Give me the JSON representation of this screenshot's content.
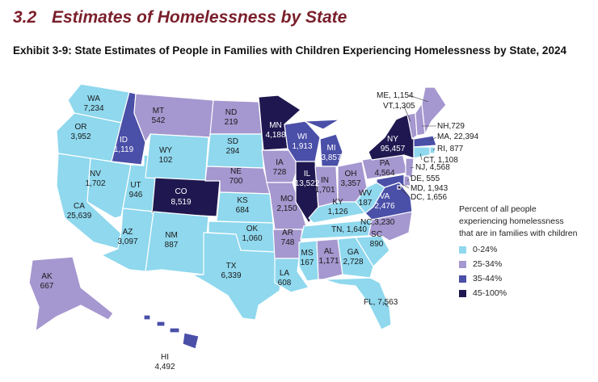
{
  "section": {
    "number": "3.2",
    "title": "Estimates of Homelessness by State"
  },
  "exhibit": {
    "title": "Exhibit 3-9: State Estimates of People in Families with Children Experiencing Homelessness by State, 2024"
  },
  "colors": {
    "c0": "#8fd8ee",
    "c1": "#a597cf",
    "c2": "#4a4fa8",
    "c3": "#1f1850",
    "border": "#ffffff"
  },
  "legend": {
    "title_line1": "Percent of all people",
    "title_line2": "experiencing homelessness",
    "title_line3": "that are in families with children",
    "items": [
      {
        "label": "0-24%",
        "color": "#8fd8ee"
      },
      {
        "label": "25-34%",
        "color": "#a597cf"
      },
      {
        "label": "35-44%",
        "color": "#4a4fa8"
      },
      {
        "label": "45-100%",
        "color": "#1f1850"
      }
    ]
  },
  "states": {
    "WA": {
      "label": "WA",
      "value": "7,234"
    },
    "OR": {
      "label": "OR",
      "value": "3,952"
    },
    "CA": {
      "label": "CA",
      "value": "25,639"
    },
    "ID": {
      "label": "ID",
      "value": "1,119"
    },
    "NV": {
      "label": "NV",
      "value": "1,702"
    },
    "MT": {
      "label": "MT",
      "value": "542"
    },
    "WY": {
      "label": "WY",
      "value": "102"
    },
    "UT": {
      "label": "UT",
      "value": "946"
    },
    "AZ": {
      "label": "AZ",
      "value": "3,097"
    },
    "CO": {
      "label": "CO",
      "value": "8,519"
    },
    "NM": {
      "label": "NM",
      "value": "887"
    },
    "ND": {
      "label": "ND",
      "value": "219"
    },
    "SD": {
      "label": "SD",
      "value": "294"
    },
    "NE": {
      "label": "NE",
      "value": "700"
    },
    "KS": {
      "label": "KS",
      "value": "684"
    },
    "OK": {
      "label": "OK",
      "value": "1,060"
    },
    "TX": {
      "label": "TX",
      "value": "6,339"
    },
    "MN": {
      "label": "MN",
      "value": "4,188"
    },
    "IA": {
      "label": "IA",
      "value": "728"
    },
    "MO": {
      "label": "MO",
      "value": "2,150"
    },
    "AR": {
      "label": "AR",
      "value": "748"
    },
    "LA": {
      "label": "LA",
      "value": "608"
    },
    "WI": {
      "label": "WI",
      "value": "1,913"
    },
    "IL": {
      "label": "IL",
      "value": "13,522"
    },
    "MI": {
      "label": "MI",
      "value": "3,857"
    },
    "IN": {
      "label": "IN",
      "value": "1,701"
    },
    "OH": {
      "label": "OH",
      "value": "3,357"
    },
    "KY": {
      "label": "KY",
      "value": "1,126"
    },
    "TN": {
      "label": "TN,",
      "value": "1,640"
    },
    "MS": {
      "label": "MS",
      "value": "167"
    },
    "AL": {
      "label": "AL",
      "value": "1,171"
    },
    "GA": {
      "label": "GA",
      "value": "2,728"
    },
    "FL": {
      "label": "FL,",
      "value": "7,563"
    },
    "SC": {
      "label": "SC",
      "value": "890"
    },
    "NC": {
      "label": "NC,",
      "value": "3,230"
    },
    "VA": {
      "label": "VA",
      "value": "2,476"
    },
    "WV": {
      "label": "WV",
      "value": "187"
    },
    "PA": {
      "label": "PA",
      "value": "4,564"
    },
    "NY": {
      "label": "NY",
      "value": "95,457"
    },
    "ME": {
      "label": "ME,",
      "value": "1,154"
    },
    "VT": {
      "label": "VT,",
      "value": "1,305"
    },
    "NH": {
      "label": "NH,",
      "value": "729"
    },
    "MA": {
      "label": "MA,",
      "value": "22,394"
    },
    "RI": {
      "label": "RI,",
      "value": "877"
    },
    "CT": {
      "label": "CT,",
      "value": "1,108"
    },
    "NJ": {
      "label": "NJ,",
      "value": "4,568"
    },
    "DE": {
      "label": "DE,",
      "value": "555"
    },
    "MD": {
      "label": "MD,",
      "value": "1,943"
    },
    "DC": {
      "label": "DC,",
      "value": "1,656"
    },
    "AK": {
      "label": "AK",
      "value": "667"
    },
    "HI": {
      "label": "HI",
      "value": "4,492"
    }
  }
}
